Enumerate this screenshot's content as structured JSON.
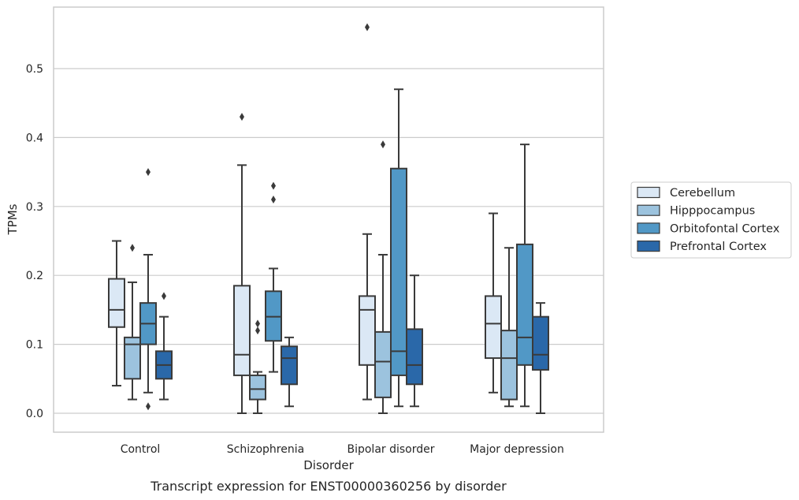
{
  "chart_data": {
    "type": "box",
    "xlabel": "Disorder",
    "ylabel": "TPMs",
    "caption": "Transcript expression for ENST00000360256 by disorder",
    "ylim": [
      -0.028,
      0.59
    ],
    "yticks": [
      0.0,
      0.1,
      0.2,
      0.3,
      0.4,
      0.5
    ],
    "ytick_labels": [
      "0.0",
      "0.1",
      "0.2",
      "0.3",
      "0.4",
      "0.5"
    ],
    "grid": "horizontal",
    "legend_position": "right",
    "categories": [
      "Control",
      "Schizophrenia",
      "Bipolar disorder",
      "Major depression"
    ],
    "series": [
      {
        "name": "Cerebellum",
        "color": "#dbe8f5",
        "boxes": [
          {
            "whisker_low": 0.04,
            "q1": 0.125,
            "median": 0.15,
            "q3": 0.195,
            "whisker_high": 0.25,
            "outliers": []
          },
          {
            "whisker_low": 0.0,
            "q1": 0.055,
            "median": 0.085,
            "q3": 0.185,
            "whisker_high": 0.36,
            "outliers": [
              0.43
            ]
          },
          {
            "whisker_low": 0.02,
            "q1": 0.07,
            "median": 0.15,
            "q3": 0.17,
            "whisker_high": 0.26,
            "outliers": [
              0.56
            ]
          },
          {
            "whisker_low": 0.03,
            "q1": 0.08,
            "median": 0.13,
            "q3": 0.17,
            "whisker_high": 0.29,
            "outliers": []
          }
        ]
      },
      {
        "name": "Hipppocampus",
        "color": "#9cc3de",
        "boxes": [
          {
            "whisker_low": 0.02,
            "q1": 0.05,
            "median": 0.1,
            "q3": 0.11,
            "whisker_high": 0.19,
            "outliers": [
              0.24
            ]
          },
          {
            "whisker_low": 0.0,
            "q1": 0.02,
            "median": 0.035,
            "q3": 0.055,
            "whisker_high": 0.06,
            "outliers": [
              0.12,
              0.13
            ]
          },
          {
            "whisker_low": 0.0,
            "q1": 0.023,
            "median": 0.075,
            "q3": 0.118,
            "whisker_high": 0.23,
            "outliers": [
              0.39
            ]
          },
          {
            "whisker_low": 0.01,
            "q1": 0.02,
            "median": 0.08,
            "q3": 0.12,
            "whisker_high": 0.24,
            "outliers": []
          }
        ]
      },
      {
        "name": "Orbitofontal Cortex",
        "color": "#5198c6",
        "boxes": [
          {
            "whisker_low": 0.03,
            "q1": 0.1,
            "median": 0.13,
            "q3": 0.16,
            "whisker_high": 0.23,
            "outliers": [
              0.35,
              0.01
            ]
          },
          {
            "whisker_low": 0.06,
            "q1": 0.105,
            "median": 0.14,
            "q3": 0.177,
            "whisker_high": 0.21,
            "outliers": [
              0.31,
              0.33
            ]
          },
          {
            "whisker_low": 0.01,
            "q1": 0.055,
            "median": 0.09,
            "q3": 0.355,
            "whisker_high": 0.47,
            "outliers": []
          },
          {
            "whisker_low": 0.01,
            "q1": 0.07,
            "median": 0.11,
            "q3": 0.245,
            "whisker_high": 0.39,
            "outliers": []
          }
        ]
      },
      {
        "name": "Prefrontal Cortex",
        "color": "#2a68a9",
        "boxes": [
          {
            "whisker_low": 0.02,
            "q1": 0.05,
            "median": 0.07,
            "q3": 0.09,
            "whisker_high": 0.14,
            "outliers": [
              0.17
            ]
          },
          {
            "whisker_low": 0.01,
            "q1": 0.042,
            "median": 0.08,
            "q3": 0.097,
            "whisker_high": 0.11,
            "outliers": []
          },
          {
            "whisker_low": 0.01,
            "q1": 0.042,
            "median": 0.07,
            "q3": 0.122,
            "whisker_high": 0.2,
            "outliers": []
          },
          {
            "whisker_low": 0.0,
            "q1": 0.063,
            "median": 0.085,
            "q3": 0.14,
            "whisker_high": 0.16,
            "outliers": []
          }
        ]
      }
    ]
  }
}
